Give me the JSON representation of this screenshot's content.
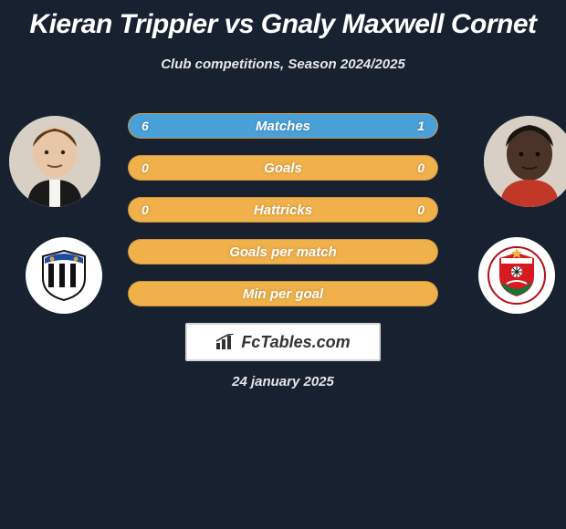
{
  "title": "Kieran Trippier vs Gnaly Maxwell Cornet",
  "subtitle": "Club competitions, Season 2024/2025",
  "date": "24 january 2025",
  "badge_text": "FcTables.com",
  "colors": {
    "background": "#172130",
    "bar_base": "#f0b14a",
    "bar_fill": "#4aa0d8",
    "text": "#ffffff"
  },
  "players": {
    "left": {
      "name": "Kieran Trippier",
      "skin": "#e8c6a8",
      "hair": "#5a3a1e"
    },
    "right": {
      "name": "Gnaly Maxwell Cornet",
      "skin": "#4a3428",
      "hair": "#1a1410"
    }
  },
  "clubs": {
    "left": {
      "name": "Newcastle United",
      "stripe1": "#111111",
      "stripe2": "#ffffff"
    },
    "right": {
      "name": "Southampton FC",
      "primary": "#d71920",
      "top": "#ffffff",
      "bottom": "#0a7a3a"
    }
  },
  "bars": [
    {
      "label": "Matches",
      "left_val": "6",
      "right_val": "1",
      "left_pct": 80,
      "right_pct": 20
    },
    {
      "label": "Goals",
      "left_val": "0",
      "right_val": "0",
      "left_pct": 0,
      "right_pct": 0
    },
    {
      "label": "Hattricks",
      "left_val": "0",
      "right_val": "0",
      "left_pct": 0,
      "right_pct": 0
    },
    {
      "label": "Goals per match",
      "left_val": "",
      "right_val": "",
      "left_pct": 0,
      "right_pct": 0
    },
    {
      "label": "Min per goal",
      "left_val": "",
      "right_val": "",
      "left_pct": 0,
      "right_pct": 0
    }
  ]
}
